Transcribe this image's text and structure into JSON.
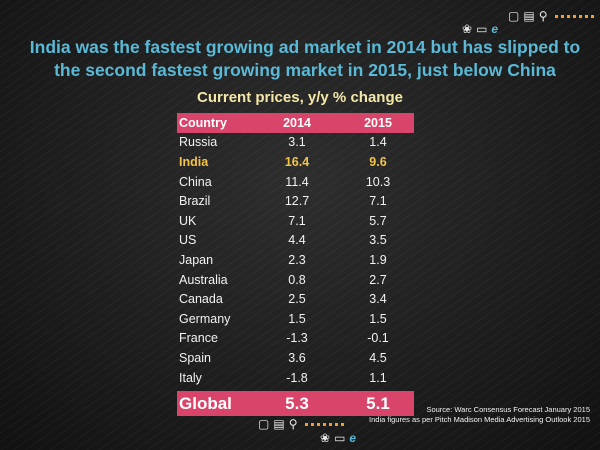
{
  "headline": {
    "line1": "India was the fastest growing ad market in 2014 but has  slipped to",
    "line2": "the second fastest growing market in 2015, just below China"
  },
  "chart_data": {
    "type": "table",
    "title": "Current prices, y/y % change",
    "columns": [
      "Country",
      "2014",
      "2015"
    ],
    "rows": [
      {
        "country": "Russia",
        "v2014": "3.1",
        "v2015": "1.4"
      },
      {
        "country": "India",
        "v2014": "16.4",
        "v2015": "9.6",
        "highlight": true
      },
      {
        "country": "China",
        "v2014": "11.4",
        "v2015": "10.3"
      },
      {
        "country": "Brazil",
        "v2014": "12.7",
        "v2015": "7.1"
      },
      {
        "country": "UK",
        "v2014": "7.1",
        "v2015": "5.7"
      },
      {
        "country": "US",
        "v2014": "4.4",
        "v2015": "3.5"
      },
      {
        "country": "Japan",
        "v2014": "2.3",
        "v2015": "1.9"
      },
      {
        "country": "Australia",
        "v2014": "0.8",
        "v2015": "2.7"
      },
      {
        "country": "Canada",
        "v2014": "2.5",
        "v2015": "3.4"
      },
      {
        "country": "Germany",
        "v2014": "1.5",
        "v2015": "1.5"
      },
      {
        "country": "France",
        "v2014": "-1.3",
        "v2015": "-0.1"
      },
      {
        "country": "Spain",
        "v2014": "3.6",
        "v2015": "4.5"
      },
      {
        "country": "Italy",
        "v2014": "-1.8",
        "v2015": "1.1"
      }
    ],
    "total": {
      "country": "Global",
      "v2014": "5.3",
      "v2015": "5.1"
    }
  },
  "source": {
    "line1": "Source: Warc  Consensus Forecast  January 2015",
    "line2": "India figures as per Pitch Madison Media Advertising Outlook 2015"
  },
  "decor_icons": [
    "film-reel-icon",
    "monitor-icon",
    "internet-explorer-icon",
    "tv-icon",
    "newspaper-icon",
    "microphone-icon"
  ],
  "colors": {
    "headline": "#5ab9d6",
    "header_band": "#d9456a",
    "highlight": "#f2c44a",
    "subtitle": "#f4e8a8",
    "accent_dots": "#f0a030"
  }
}
